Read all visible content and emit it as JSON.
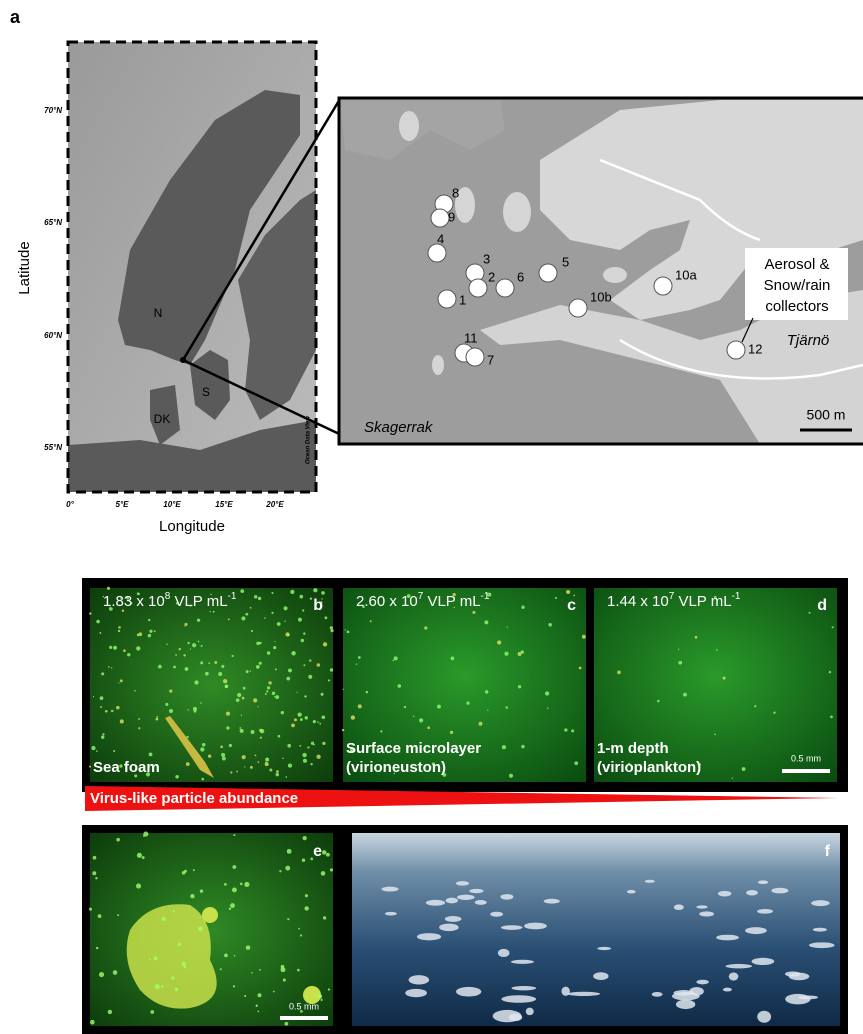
{
  "panel_a": {
    "label": "a",
    "y_axis_label": "Latitude",
    "x_axis_label": "Longitude",
    "latitude_labels": [
      "70°N",
      "65°N",
      "60°N",
      "55°N"
    ],
    "longitude_labels": [
      "0°",
      "5°E",
      "10°E",
      "15°E",
      "20°E"
    ],
    "country_labels": [
      "N",
      "S",
      "DK"
    ],
    "credit": "Ocean Data View",
    "stations": [
      "8",
      "9",
      "4",
      "3",
      "2",
      "6",
      "5",
      "10a",
      "1",
      "10b",
      "11",
      "7",
      "12"
    ],
    "callout": [
      "Aerosol &",
      "Snow/rain",
      "collectors"
    ],
    "place_labels": [
      "Tjärnö",
      "Skagerrak"
    ],
    "scale_bar": "500 m"
  },
  "microscopy_panels": [
    {
      "label": "b",
      "count": {
        "base": "1.83 x 10",
        "exponent": "8",
        "unit": " VLP mL",
        "unit_exponent": "-1"
      },
      "caption": [
        "Sea foam"
      ]
    },
    {
      "label": "c",
      "count": {
        "base": "2.60 x 10",
        "exponent": "7",
        "unit": " VLP mL",
        "unit_exponent": "-1"
      },
      "caption": [
        "Surface microlayer",
        "(virioneuston)"
      ]
    },
    {
      "label": "d",
      "count": {
        "base": "1.44 x 10",
        "exponent": "7",
        "unit": " VLP mL",
        "unit_exponent": "-1"
      },
      "caption": [
        "1-m depth",
        "(virioplankton)"
      ],
      "scale_bar": "0.5 mm"
    }
  ],
  "gradient_label": "Virus-like particle abundance",
  "bottom_panels": [
    {
      "label": "e",
      "scale_bar": "0.5 mm"
    },
    {
      "label": "f"
    }
  ]
}
